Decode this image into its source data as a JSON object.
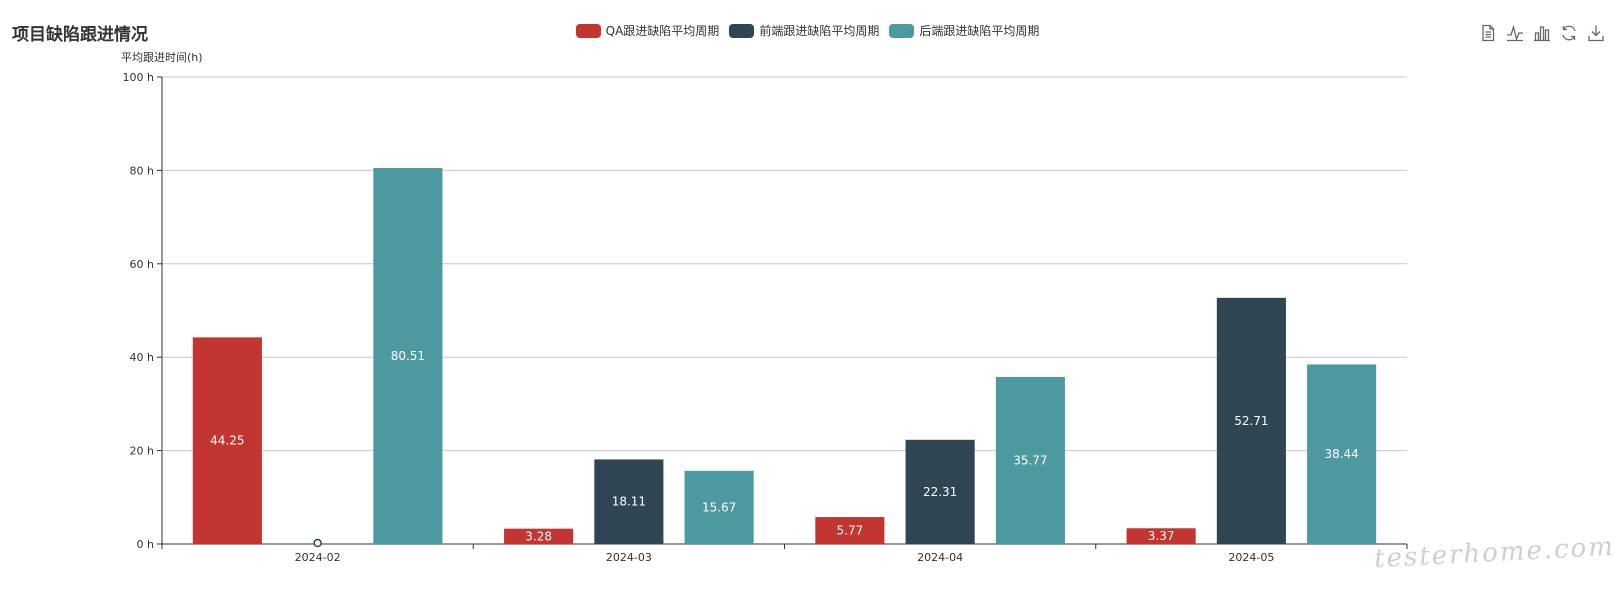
{
  "title": "项目缺陷跟进情况",
  "toolbox": [
    "data-view-icon",
    "line-switch-icon",
    "bar-switch-icon",
    "restore-icon",
    "save-image-icon"
  ],
  "watermark": "testerhome.com",
  "chart_data": {
    "type": "bar",
    "categories": [
      "2024-02",
      "2024-03",
      "2024-04",
      "2024-05"
    ],
    "series": [
      {
        "name": "QA跟进缺陷平均周期",
        "color": "#c23531",
        "values": [
          44.25,
          3.28,
          5.77,
          3.37
        ]
      },
      {
        "name": "前端跟进缺陷平均周期",
        "color": "#2f4554",
        "values": [
          0,
          18.11,
          22.31,
          52.71
        ]
      },
      {
        "name": "后端跟进缺陷平均周期",
        "color": "#4c9a9f",
        "values": [
          80.51,
          15.67,
          35.77,
          38.44
        ]
      }
    ],
    "ylabel": "平均跟进时间(h)",
    "yticks": [
      "0 h",
      "20 h",
      "40 h",
      "60 h",
      "80 h",
      "100 h"
    ],
    "ylim": [
      0,
      100
    ],
    "grid": true,
    "legend_position": "top-center"
  }
}
